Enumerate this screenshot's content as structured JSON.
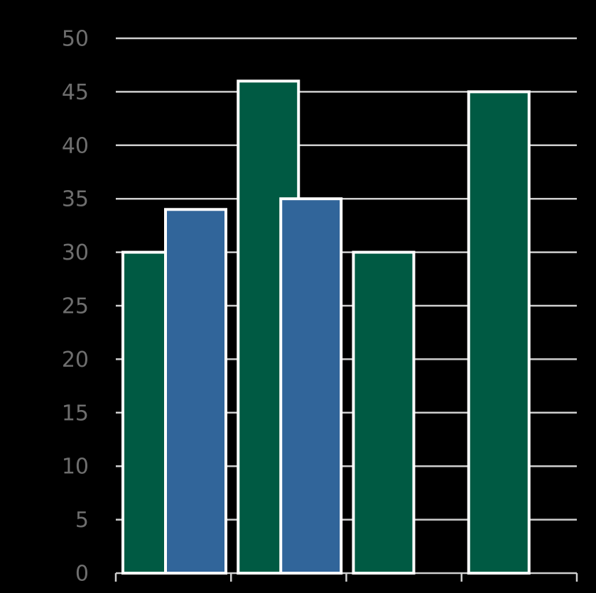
{
  "chart_data": {
    "type": "bar",
    "categories": [
      null,
      null,
      null,
      null
    ],
    "series": [
      {
        "color": "#005a43",
        "values": [
          30,
          46,
          30,
          45
        ]
      },
      {
        "color": "#31659a",
        "values": [
          34,
          35,
          null,
          null
        ]
      }
    ],
    "ylim": [
      0,
      50
    ],
    "yticks": [
      0,
      5,
      10,
      15,
      20,
      25,
      30,
      35,
      40,
      45,
      50
    ],
    "grid": true
  }
}
